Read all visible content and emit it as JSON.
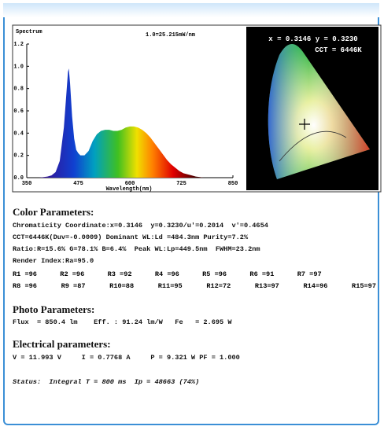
{
  "chart_data": {
    "type": "area",
    "title": "Spectrum",
    "subtitle": "1.0=25.215mW/nm",
    "x_label": "Wavelength(nm)",
    "x": [
      380,
      400,
      410,
      420,
      430,
      440,
      445,
      450,
      452,
      455,
      460,
      465,
      470,
      475,
      480,
      490,
      500,
      510,
      520,
      530,
      540,
      550,
      560,
      570,
      580,
      590,
      600,
      610,
      620,
      630,
      640,
      650,
      660,
      670,
      680,
      690,
      700,
      710,
      720,
      730,
      740,
      750,
      760,
      780
    ],
    "values": [
      0,
      0.01,
      0.02,
      0.05,
      0.15,
      0.45,
      0.7,
      0.95,
      0.98,
      0.85,
      0.55,
      0.35,
      0.25,
      0.22,
      0.2,
      0.2,
      0.24,
      0.33,
      0.39,
      0.42,
      0.43,
      0.43,
      0.42,
      0.42,
      0.43,
      0.45,
      0.46,
      0.46,
      0.45,
      0.43,
      0.4,
      0.36,
      0.31,
      0.26,
      0.21,
      0.16,
      0.12,
      0.09,
      0.06,
      0.04,
      0.03,
      0.02,
      0.01,
      0
    ],
    "xlim": [
      350,
      850
    ],
    "xticks": [
      350,
      475,
      600,
      725,
      850
    ],
    "ylim": [
      0,
      1.2
    ],
    "yticks": [
      {
        "value": 0,
        "label": "0.0"
      },
      {
        "value": 0.2,
        "label": "0.2"
      },
      {
        "value": 0.4,
        "label": "0.4"
      },
      {
        "value": 0.6,
        "label": "0.6"
      },
      {
        "value": 0.8,
        "label": "0.8"
      },
      {
        "value": 1,
        "label": "1.0"
      },
      {
        "value": 1.2,
        "label": "1.2"
      }
    ]
  },
  "cie": {
    "coords": "x = 0.3146 y = 0.3230",
    "cct": "CCT = 6446K"
  },
  "color": {
    "heading": "Color Parameters:",
    "lines": [
      "Chromaticity Coordinate:x=0.3146  y=0.3230/u'=0.2014  v'=0.4654",
      "CCT=6446K(Duv=-0.0009) Dominant WL:Ld =484.3nm Purity=7.2%",
      "Ratio:R=15.6% G=78.1% B=6.4%  Peak WL:Lp=449.5nm  FWHM=23.2nm",
      "Render Index:Ra=95.0"
    ],
    "rows": [
      [
        "R1 =96",
        "R2 =96",
        "R3 =92",
        "R4 =96",
        "R5 =96",
        "R6 =91",
        "R7 =97"
      ],
      [
        "R8 =96",
        "R9 =87",
        "R10=88",
        "R11=95",
        "R12=72",
        "R13=97",
        "R14=96",
        "R15=97"
      ]
    ]
  },
  "photo": {
    "heading": "Photo Parameters:",
    "line": "Flux  = 850.4 lm    Eff. : 91.24 lm/W   Fe   = 2.695 W"
  },
  "electrical": {
    "heading": "Electrical parameters:",
    "line": "V = 11.993 V     I = 0.7768 A     P = 9.321 W PF = 1.000"
  },
  "status": "Status:  Integral T = 800 ms  Ip = 48663 (74%)"
}
